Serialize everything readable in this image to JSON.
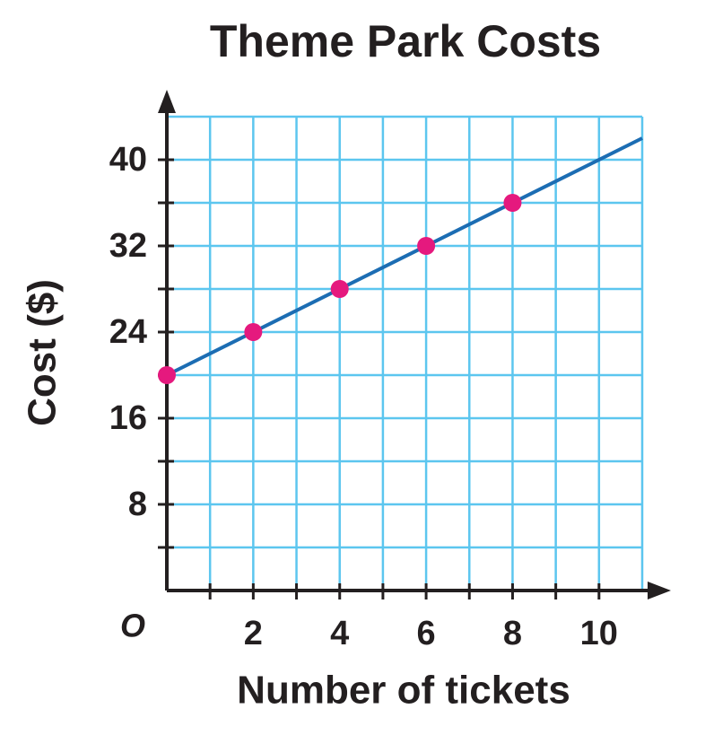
{
  "chart_data": {
    "type": "line",
    "title": "Theme Park Costs",
    "x_label": "Number of tickets",
    "y_label": "Cost ($)",
    "origin_label": "O",
    "xlim": [
      0,
      11
    ],
    "ylim": [
      0,
      44
    ],
    "xticks": [
      2,
      4,
      6,
      8,
      10
    ],
    "yticks": [
      8,
      16,
      24,
      32,
      40
    ],
    "xminorticks": [
      1,
      3,
      5,
      7,
      9
    ],
    "yminorticks": [
      4,
      12,
      20,
      28,
      36
    ],
    "grid": true,
    "grid_color": "#5cc6ef",
    "series": [
      {
        "style": "line",
        "color": "#1c6db3",
        "x": [
          0,
          11
        ],
        "values": [
          20,
          42
        ]
      },
      {
        "style": "points",
        "color": "#e5197e",
        "x": [
          0,
          2,
          4,
          6,
          8
        ],
        "values": [
          20,
          24,
          28,
          32,
          36
        ]
      }
    ]
  }
}
